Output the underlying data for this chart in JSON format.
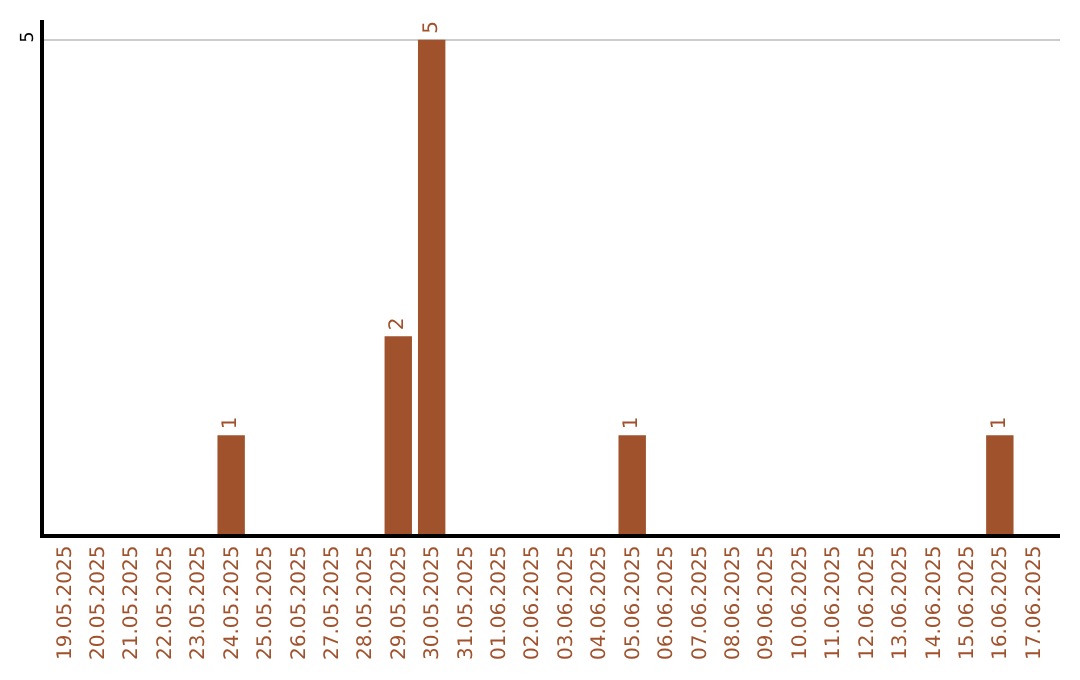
{
  "chart_data": {
    "type": "bar",
    "categories": [
      "19.05.2025",
      "20.05.2025",
      "21.05.2025",
      "22.05.2025",
      "23.05.2025",
      "24.05.2025",
      "25.05.2025",
      "26.05.2025",
      "27.05.2025",
      "28.05.2025",
      "29.05.2025",
      "30.05.2025",
      "31.05.2025",
      "01.06.2025",
      "02.06.2025",
      "03.06.2025",
      "04.06.2025",
      "05.06.2025",
      "06.06.2025",
      "07.06.2025",
      "08.06.2025",
      "09.06.2025",
      "10.06.2025",
      "11.06.2025",
      "12.06.2025",
      "13.06.2025",
      "14.06.2025",
      "15.06.2025",
      "16.06.2025",
      "17.06.2025"
    ],
    "values": [
      0,
      0,
      0,
      0,
      0,
      1,
      0,
      0,
      0,
      0,
      2,
      5,
      0,
      0,
      0,
      0,
      0,
      1,
      0,
      0,
      0,
      0,
      0,
      0,
      0,
      0,
      0,
      0,
      1,
      0
    ],
    "value_labels": [
      null,
      null,
      null,
      null,
      null,
      "1",
      null,
      null,
      null,
      null,
      "2",
      "5",
      null,
      null,
      null,
      null,
      null,
      "1",
      null,
      null,
      null,
      null,
      null,
      null,
      null,
      null,
      null,
      null,
      "1",
      null
    ],
    "color": "#a0522d",
    "ylim": [
      0,
      5.2
    ],
    "yticks": [
      5
    ],
    "grid": "y",
    "legend": false
  }
}
